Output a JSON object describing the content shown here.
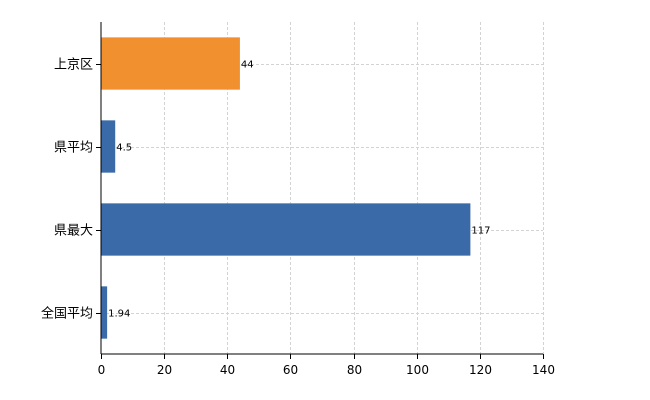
{
  "chart_data": {
    "type": "bar",
    "orientation": "horizontal",
    "categories": [
      "上京区",
      "県平均",
      "県最大",
      "全国平均"
    ],
    "values": [
      44,
      4.5,
      117,
      1.94
    ],
    "value_labels": [
      "44",
      "4.5",
      "117",
      "1.94"
    ],
    "bar_colors": [
      "#f0902e",
      "#3a6aa8",
      "#3a6aa8",
      "#3a6aa8"
    ],
    "xlim": [
      0,
      140
    ],
    "xticks": [
      0,
      20,
      40,
      60,
      80,
      100,
      120,
      140
    ],
    "xtick_labels": [
      "0",
      "20",
      "40",
      "60",
      "80",
      "100",
      "120",
      "140"
    ],
    "grid": true,
    "title": "",
    "xlabel": "",
    "ylabel": ""
  }
}
